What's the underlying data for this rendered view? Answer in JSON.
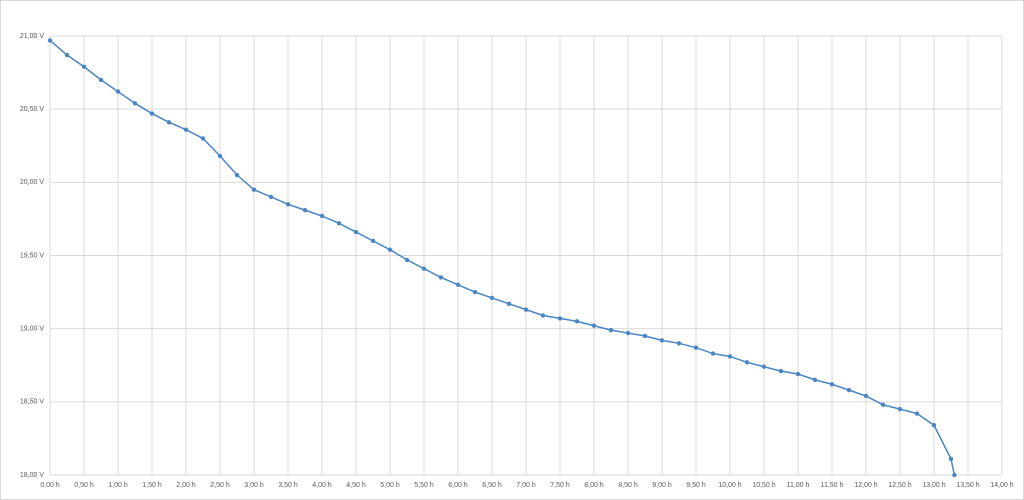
{
  "chart_data": {
    "type": "line",
    "x": [
      0,
      0.25,
      0.5,
      0.75,
      1.0,
      1.25,
      1.5,
      1.75,
      2.0,
      2.25,
      2.5,
      2.75,
      3.0,
      3.25,
      3.5,
      3.75,
      4.0,
      4.25,
      4.5,
      4.75,
      5.0,
      5.25,
      5.5,
      5.75,
      6.0,
      6.25,
      6.5,
      6.75,
      7.0,
      7.25,
      7.5,
      7.75,
      8.0,
      8.25,
      8.5,
      8.75,
      9.0,
      9.25,
      9.5,
      9.75,
      10.0,
      10.25,
      10.5,
      10.75,
      11.0,
      11.25,
      11.5,
      11.75,
      12.0,
      12.25,
      12.5,
      12.75,
      13.0,
      13.25,
      13.3
    ],
    "series": [
      {
        "color": "#4a86c5",
        "values": [
          20.97,
          20.87,
          20.79,
          20.7,
          20.62,
          20.54,
          20.47,
          20.41,
          20.36,
          20.3,
          20.18,
          20.05,
          19.95,
          19.9,
          19.85,
          19.81,
          19.77,
          19.72,
          19.66,
          19.6,
          19.54,
          19.47,
          19.41,
          19.35,
          19.3,
          19.25,
          19.21,
          19.17,
          19.13,
          19.09,
          19.07,
          19.05,
          19.02,
          18.99,
          18.97,
          18.95,
          18.92,
          18.9,
          18.87,
          18.83,
          18.81,
          18.77,
          18.74,
          18.71,
          18.69,
          18.65,
          18.62,
          18.58,
          18.54,
          18.48,
          18.45,
          18.42,
          18.34,
          18.11,
          18.0
        ]
      }
    ],
    "xlim": [
      0,
      14
    ],
    "ylim": [
      18,
      21
    ],
    "xticks": [
      {
        "value": 0,
        "label": "0,00 h"
      },
      {
        "value": 0.5,
        "label": "0,50 h"
      },
      {
        "value": 1,
        "label": "1,00 h"
      },
      {
        "value": 1.5,
        "label": "1,50 h"
      },
      {
        "value": 2,
        "label": "2,00 h"
      },
      {
        "value": 2.5,
        "label": "2,50 h"
      },
      {
        "value": 3,
        "label": "3,00 h"
      },
      {
        "value": 3.5,
        "label": "3,50 h"
      },
      {
        "value": 4,
        "label": "4,00 h"
      },
      {
        "value": 4.5,
        "label": "4,50 h"
      },
      {
        "value": 5,
        "label": "5,00 h"
      },
      {
        "value": 5.5,
        "label": "5,50 h"
      },
      {
        "value": 6,
        "label": "6,00 h"
      },
      {
        "value": 6.5,
        "label": "6,50 h"
      },
      {
        "value": 7,
        "label": "7,00 h"
      },
      {
        "value": 7.5,
        "label": "7,50 h"
      },
      {
        "value": 8,
        "label": "8,00 h"
      },
      {
        "value": 8.5,
        "label": "8,50 h"
      },
      {
        "value": 9,
        "label": "9,00 h"
      },
      {
        "value": 9.5,
        "label": "9,50 h"
      },
      {
        "value": 10,
        "label": "10,00 h"
      },
      {
        "value": 10.5,
        "label": "10,50 h"
      },
      {
        "value": 11,
        "label": "11,00 h"
      },
      {
        "value": 11.5,
        "label": "11,50 h"
      },
      {
        "value": 12,
        "label": "12,00 h"
      },
      {
        "value": 12.5,
        "label": "12,50 h"
      },
      {
        "value": 13,
        "label": "13,00 h"
      },
      {
        "value": 13.5,
        "label": "13,50 h"
      },
      {
        "value": 14,
        "label": "14,00 h"
      }
    ],
    "yticks": [
      {
        "value": 18,
        "label": "18,00 V"
      },
      {
        "value": 18.5,
        "label": "18,50 V"
      },
      {
        "value": 19,
        "label": "19,00 V"
      },
      {
        "value": 19.5,
        "label": "19,50 V"
      },
      {
        "value": 20,
        "label": "20,00 V"
      },
      {
        "value": 20.5,
        "label": "20,50 V"
      },
      {
        "value": 21,
        "label": "21,00 V"
      }
    ],
    "grid": true
  }
}
